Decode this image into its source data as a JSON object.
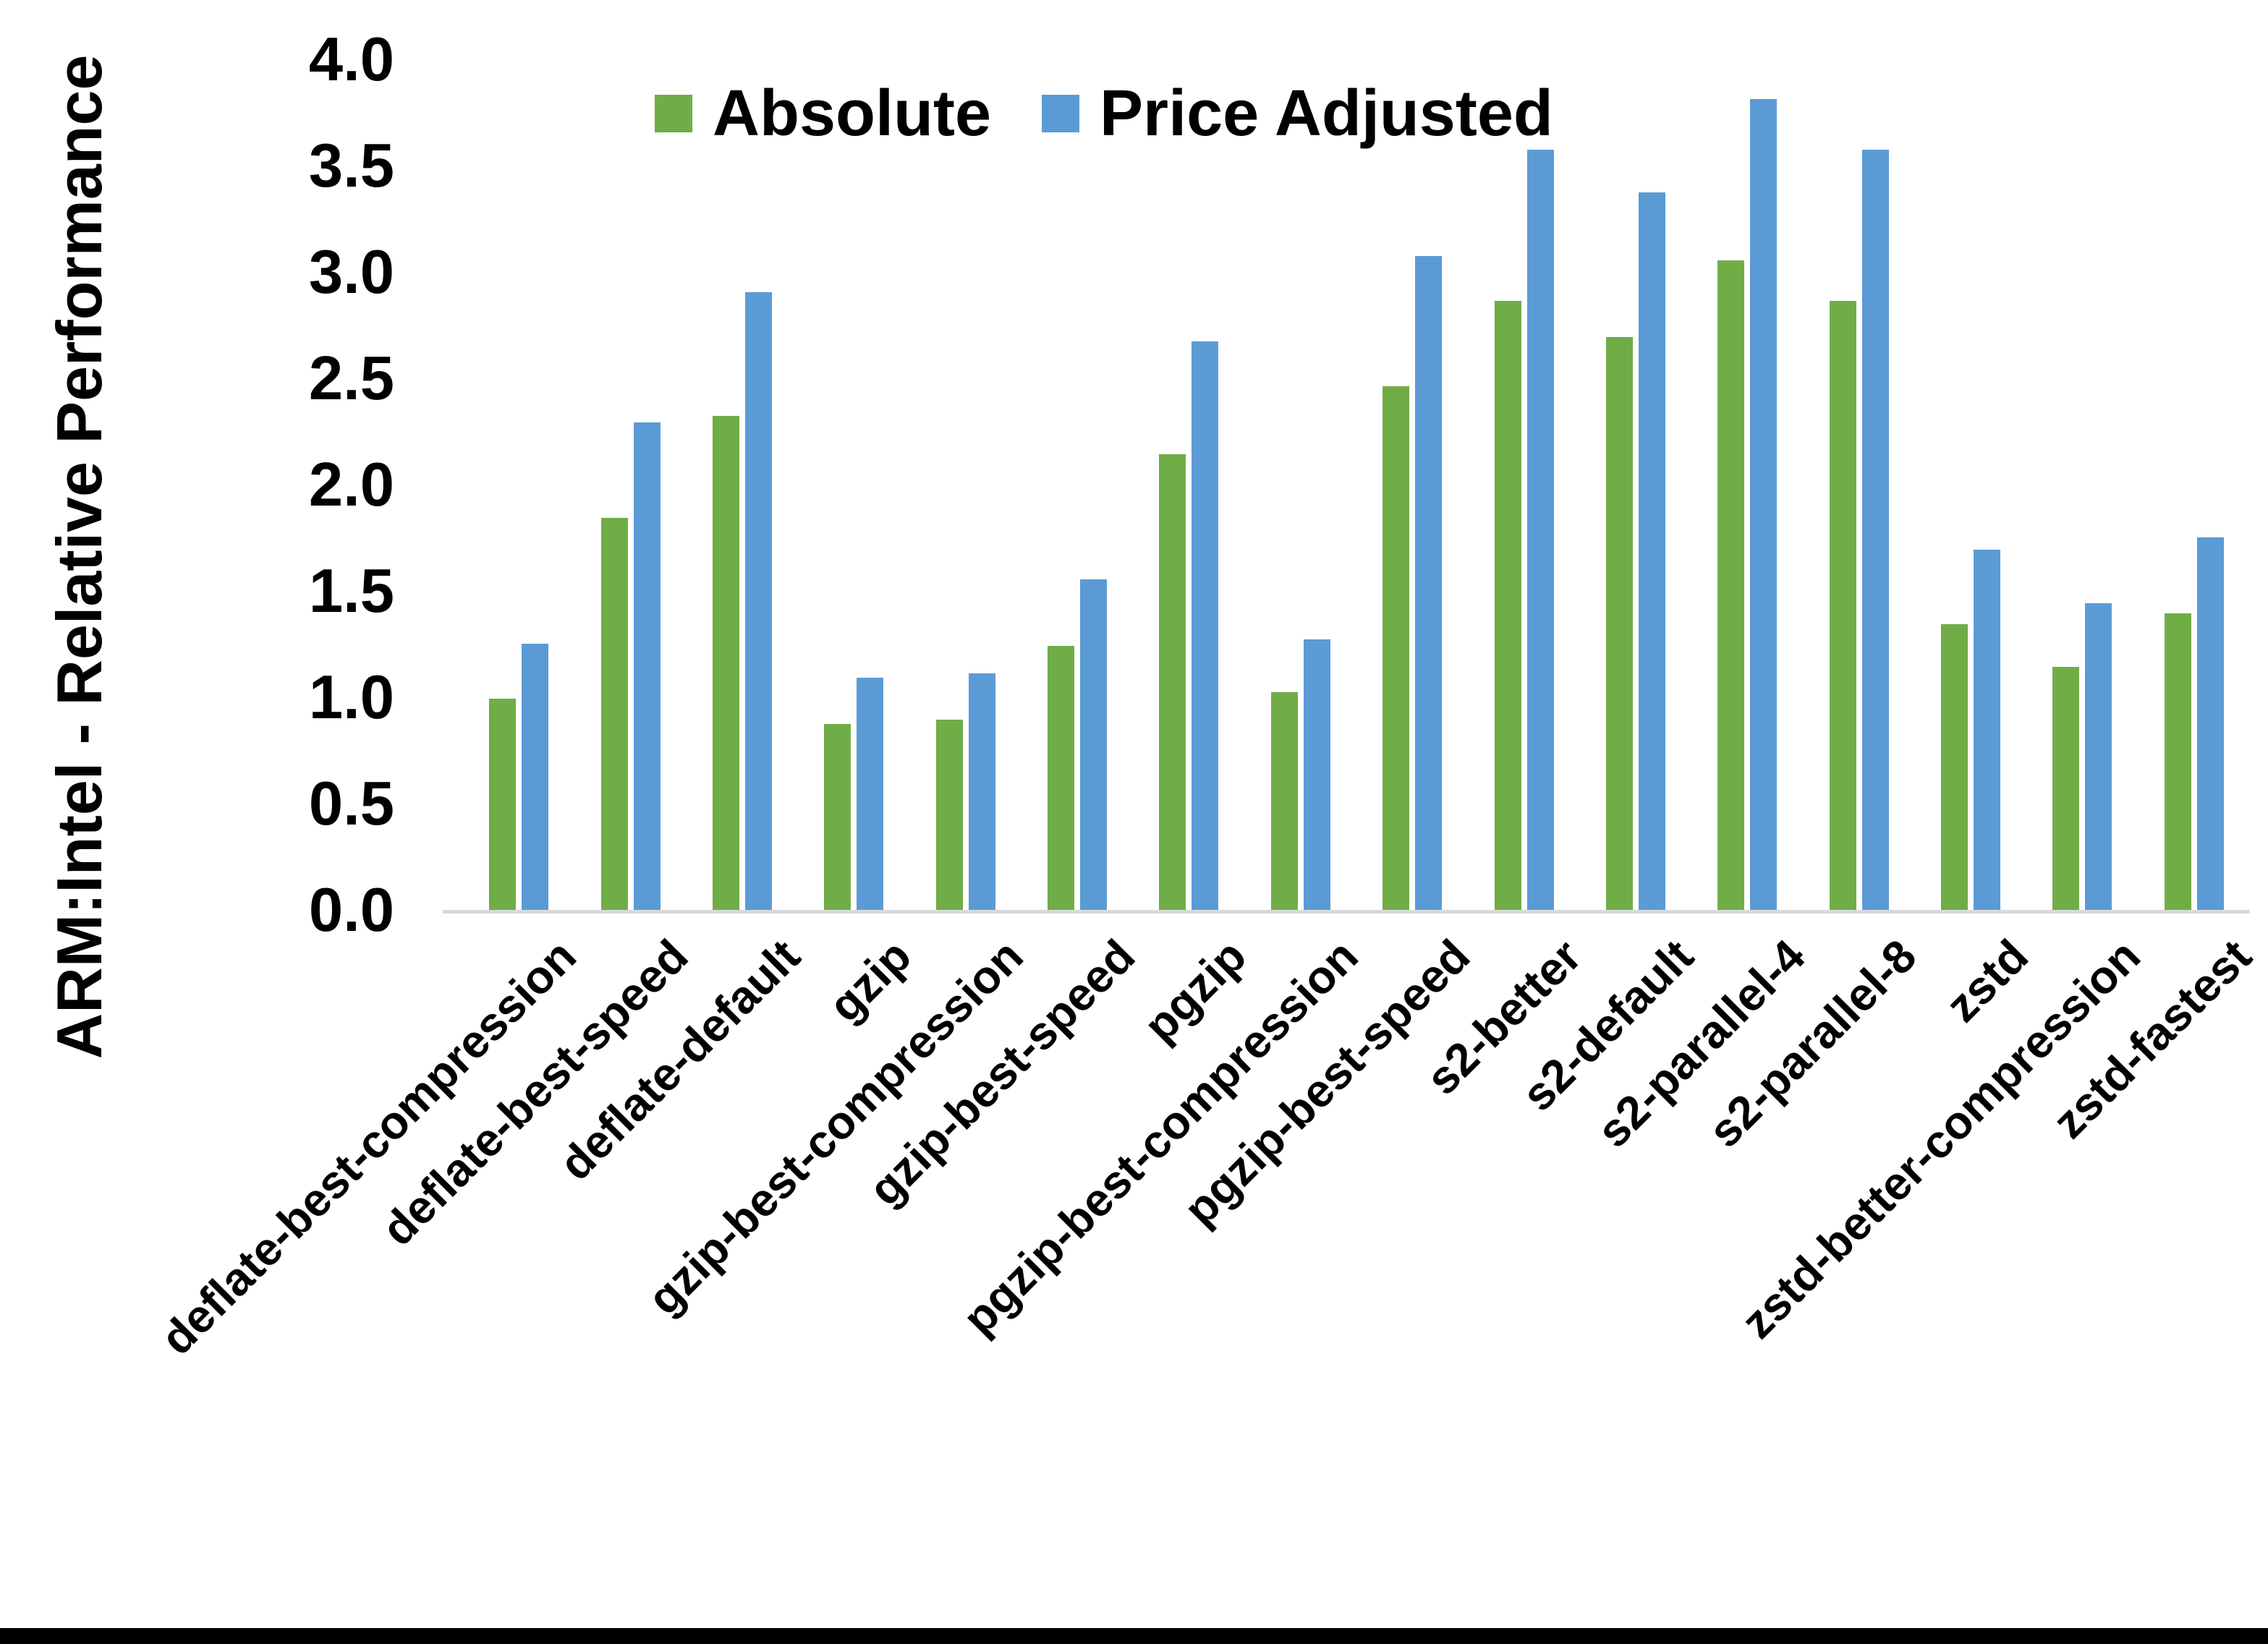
{
  "figure": {
    "background_color": "#ffffff",
    "axis_line_color": "#d9d9d9",
    "bottom_border_color": "#000000",
    "text_color": "#000000"
  },
  "legend": {
    "items": [
      {
        "label": "Absolute",
        "color": "#70ad47"
      },
      {
        "label": "Price Adjusted",
        "color": "#5b9bd5"
      }
    ]
  },
  "chart_data": {
    "type": "bar",
    "title": "",
    "xlabel": "",
    "ylabel": "ARM:Intel - Relative Performance",
    "ylim": [
      0,
      4.0
    ],
    "yticks": [
      "0.0",
      "0.5",
      "1.0",
      "1.5",
      "2.0",
      "2.5",
      "3.0",
      "3.5",
      "4.0"
    ],
    "grid": false,
    "legend_position": "top-center",
    "bar_colors": {
      "Absolute": "#70ad47",
      "Price Adjusted": "#5b9bd5"
    },
    "categories": [
      "deflate-best-compression",
      "deflate-best-speed",
      "deflate-default",
      "gzip",
      "gzip-best-compression",
      "gzip-best-speed",
      "pgzip",
      "pgzip-best-compression",
      "pgzip-best-speed",
      "s2-better",
      "s2-default",
      "s2-parallel-4",
      "s2-parallel-8",
      "zstd",
      "zstd-better-compression",
      "zstd-fastest"
    ],
    "series": [
      {
        "name": "Absolute",
        "color": "#70ad47",
        "values": [
          1.0,
          1.85,
          2.33,
          0.88,
          0.9,
          1.25,
          2.15,
          1.03,
          2.47,
          2.87,
          2.7,
          3.06,
          2.87,
          1.35,
          1.15,
          1.4
        ]
      },
      {
        "name": "Price Adjusted",
        "color": "#5b9bd5",
        "values": [
          1.26,
          2.3,
          2.91,
          1.1,
          1.12,
          1.56,
          2.68,
          1.28,
          3.08,
          3.58,
          3.38,
          3.82,
          3.58,
          1.7,
          1.45,
          1.76
        ]
      }
    ]
  }
}
